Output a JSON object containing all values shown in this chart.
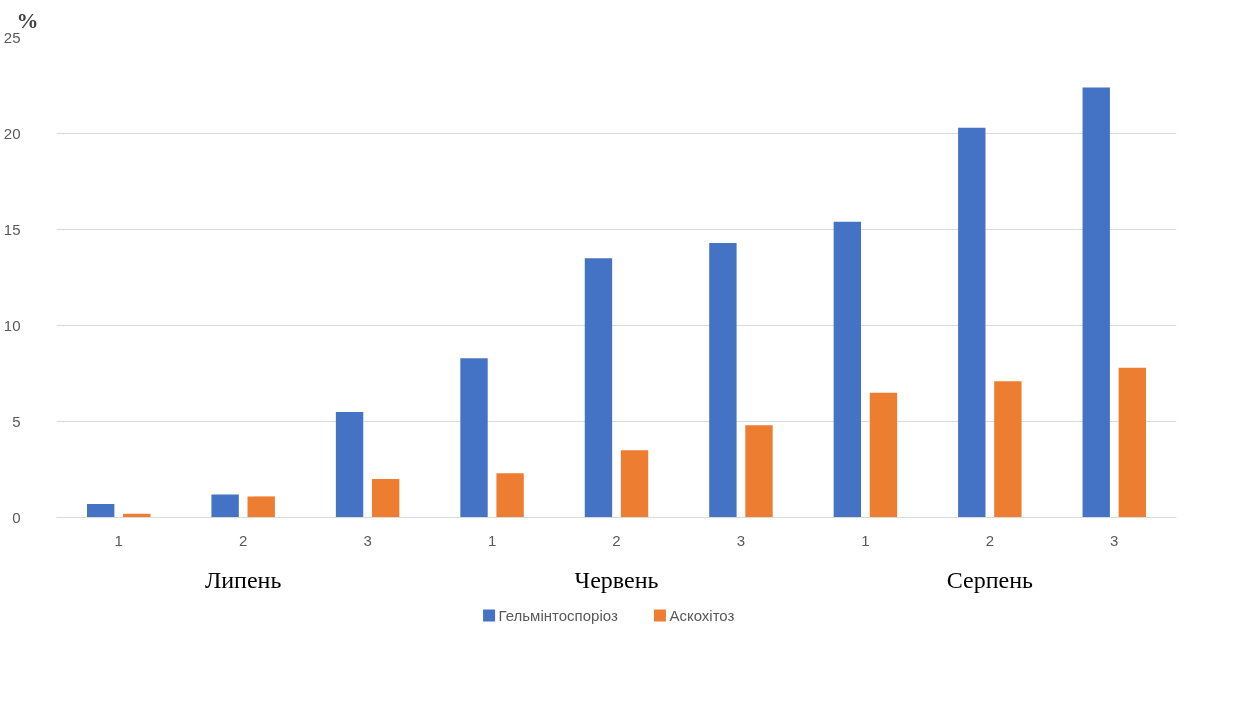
{
  "chart_data": {
    "type": "bar",
    "ylabel": "%",
    "categories": [
      "1",
      "2",
      "3",
      "1",
      "2",
      "3",
      "1",
      "2",
      "3"
    ],
    "annotations": [
      "Липень",
      "Червень",
      "Серпень"
    ],
    "series": [
      {
        "name": "Гельмінтоспоріоз",
        "color": "#4472c4",
        "values": [
          0.7,
          1.2,
          5.5,
          8.3,
          13.5,
          14.3,
          15.4,
          20.3,
          22.4
        ]
      },
      {
        "name": "Аскохітоз",
        "color": "#ed7d31",
        "values": [
          0.2,
          1.1,
          2.0,
          2.3,
          3.5,
          4.8,
          6.5,
          7.1,
          7.8
        ]
      }
    ],
    "ylim": [
      0,
      25
    ],
    "yticks": [
      0,
      5,
      10,
      15,
      20,
      25
    ],
    "grid": "y",
    "legend": "bottom"
  }
}
